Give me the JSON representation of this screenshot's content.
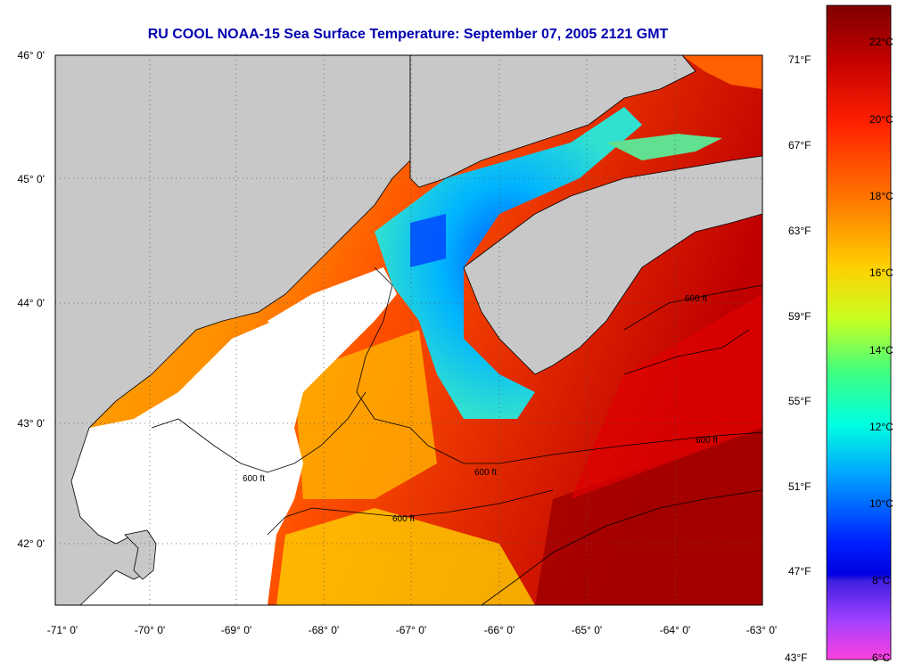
{
  "title": "RU COOL  NOAA-15  Sea Surface Temperature:  September 07, 2005 2121 GMT",
  "lat_labels": [
    "46° 0'",
    "45° 0'",
    "44° 0'",
    "43° 0'",
    "42° 0'"
  ],
  "lon_labels": [
    "-71° 0'",
    "-70° 0'",
    "-69° 0'",
    "-68° 0'",
    "-67° 0'",
    "-66° 0'",
    "-65° 0'",
    "-64° 0'",
    "-63° 0'"
  ],
  "colorbar": {
    "fahrenheit": [
      "71°F",
      "67°F",
      "63°F",
      "59°F",
      "55°F",
      "51°F",
      "47°F",
      "43°F"
    ],
    "celsius": [
      "22°C",
      "20°C",
      "18°C",
      "16°C",
      "14°C",
      "12°C",
      "10°C",
      "8°C",
      "6°C"
    ],
    "colors": [
      "#7f0000",
      "#d40000",
      "#ff3000",
      "#ff7a00",
      "#ffc800",
      "#e6ff1a",
      "#80ff4d",
      "#1affc8",
      "#00c8ff",
      "#0060ff",
      "#0000ff",
      "#8000ff",
      "#ff40ff"
    ]
  },
  "contour_label": "600 ft",
  "colors": {
    "land": "#c8c8c8",
    "cloud": "#ffffff",
    "title": "#0000b0"
  }
}
